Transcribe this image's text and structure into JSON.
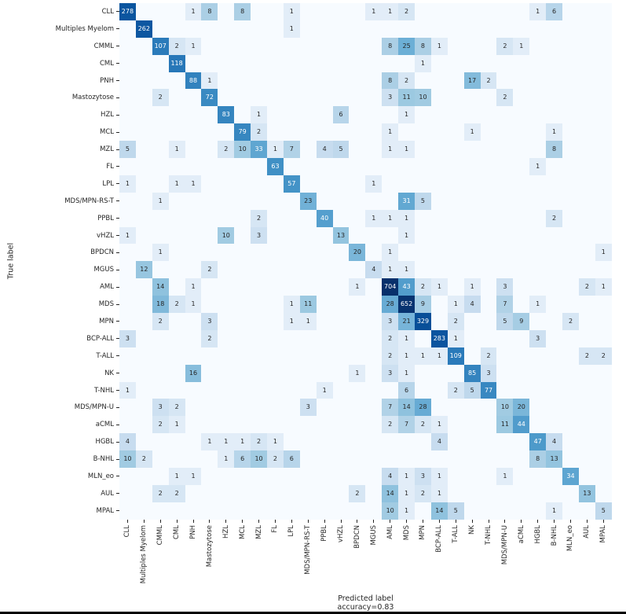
{
  "figure": {
    "background": "#ffffff",
    "tick_color": "#262626",
    "annotation_dark_text": "#262626",
    "annotation_light_text": "#ffffff"
  },
  "chart_data": {
    "type": "heatmap",
    "title": "",
    "xlabel": "Predicted label",
    "ylabel": "True label",
    "caption": "accuracy=0.83",
    "colormap": "Blues",
    "color_scale": "log",
    "vmax": 704,
    "grid": false,
    "labels": [
      "CLL",
      "Multiples Myelom",
      "CMML",
      "CML",
      "PNH",
      "Mastozytose",
      "HZL",
      "MCL",
      "MZL",
      "FL",
      "LPL",
      "MDS/MPN-RS-T",
      "PPBL",
      "vHZL",
      "BPDCN",
      "MGUS",
      "AML",
      "MDS",
      "MPN",
      "BCP-ALL",
      "T-ALL",
      "NK",
      "T-NHL",
      "MDS/MPN-U",
      "aCML",
      "HGBL",
      "B-NHL",
      "MLN_eo",
      "AUL",
      "MPAL"
    ],
    "matrix": [
      [
        278,
        0,
        0,
        0,
        1,
        8,
        0,
        8,
        0,
        0,
        1,
        0,
        0,
        0,
        0,
        1,
        1,
        2,
        0,
        0,
        0,
        0,
        0,
        0,
        0,
        1,
        6,
        0,
        0,
        0
      ],
      [
        0,
        262,
        0,
        0,
        0,
        0,
        0,
        0,
        0,
        0,
        1,
        0,
        0,
        0,
        0,
        0,
        0,
        0,
        0,
        0,
        0,
        0,
        0,
        0,
        0,
        0,
        0,
        0,
        0,
        0
      ],
      [
        0,
        0,
        107,
        2,
        1,
        0,
        0,
        0,
        0,
        0,
        0,
        0,
        0,
        0,
        0,
        0,
        8,
        25,
        8,
        1,
        0,
        0,
        0,
        2,
        1,
        0,
        0,
        0,
        0,
        0
      ],
      [
        0,
        0,
        0,
        118,
        0,
        0,
        0,
        0,
        0,
        0,
        0,
        0,
        0,
        0,
        0,
        0,
        0,
        0,
        1,
        0,
        0,
        0,
        0,
        0,
        0,
        0,
        0,
        0,
        0,
        0
      ],
      [
        0,
        0,
        0,
        0,
        88,
        1,
        0,
        0,
        0,
        0,
        0,
        0,
        0,
        0,
        0,
        0,
        8,
        2,
        0,
        0,
        0,
        17,
        2,
        0,
        0,
        0,
        0,
        0,
        0,
        0
      ],
      [
        0,
        0,
        2,
        0,
        0,
        72,
        0,
        0,
        0,
        0,
        0,
        0,
        0,
        0,
        0,
        0,
        3,
        11,
        10,
        0,
        0,
        0,
        0,
        2,
        0,
        0,
        0,
        0,
        0,
        0
      ],
      [
        0,
        0,
        0,
        0,
        0,
        0,
        83,
        0,
        1,
        0,
        0,
        0,
        0,
        6,
        0,
        0,
        0,
        1,
        0,
        0,
        0,
        0,
        0,
        0,
        0,
        0,
        0,
        0,
        0,
        0
      ],
      [
        0,
        0,
        0,
        0,
        0,
        0,
        0,
        79,
        2,
        0,
        0,
        0,
        0,
        0,
        0,
        0,
        1,
        0,
        0,
        0,
        0,
        1,
        0,
        0,
        0,
        0,
        1,
        0,
        0,
        0
      ],
      [
        5,
        0,
        0,
        1,
        0,
        0,
        2,
        10,
        33,
        1,
        7,
        0,
        4,
        5,
        0,
        0,
        1,
        1,
        0,
        0,
        0,
        0,
        0,
        0,
        0,
        0,
        8,
        0,
        0,
        0
      ],
      [
        0,
        0,
        0,
        0,
        0,
        0,
        0,
        0,
        0,
        63,
        0,
        0,
        0,
        0,
        0,
        0,
        0,
        0,
        0,
        0,
        0,
        0,
        0,
        0,
        0,
        1,
        0,
        0,
        0,
        0
      ],
      [
        1,
        0,
        0,
        1,
        1,
        0,
        0,
        0,
        0,
        0,
        57,
        0,
        0,
        0,
        0,
        1,
        0,
        0,
        0,
        0,
        0,
        0,
        0,
        0,
        0,
        0,
        0,
        0,
        0,
        0
      ],
      [
        0,
        0,
        1,
        0,
        0,
        0,
        0,
        0,
        0,
        0,
        0,
        23,
        0,
        0,
        0,
        0,
        0,
        31,
        5,
        0,
        0,
        0,
        0,
        0,
        0,
        0,
        0,
        0,
        0,
        0
      ],
      [
        0,
        0,
        0,
        0,
        0,
        0,
        0,
        0,
        2,
        0,
        0,
        0,
        40,
        0,
        0,
        1,
        1,
        1,
        0,
        0,
        0,
        0,
        0,
        0,
        0,
        0,
        2,
        0,
        0,
        0
      ],
      [
        1,
        0,
        0,
        0,
        0,
        0,
        10,
        0,
        3,
        0,
        0,
        0,
        0,
        13,
        0,
        0,
        0,
        1,
        0,
        0,
        0,
        0,
        0,
        0,
        0,
        0,
        0,
        0,
        0,
        0
      ],
      [
        0,
        0,
        1,
        0,
        0,
        0,
        0,
        0,
        0,
        0,
        0,
        0,
        0,
        0,
        20,
        0,
        1,
        0,
        0,
        0,
        0,
        0,
        0,
        0,
        0,
        0,
        0,
        0,
        0,
        1
      ],
      [
        0,
        12,
        0,
        0,
        0,
        2,
        0,
        0,
        0,
        0,
        0,
        0,
        0,
        0,
        0,
        4,
        1,
        1,
        0,
        0,
        0,
        0,
        0,
        0,
        0,
        0,
        0,
        0,
        0,
        0
      ],
      [
        0,
        0,
        14,
        0,
        1,
        0,
        0,
        0,
        0,
        0,
        0,
        0,
        0,
        0,
        1,
        0,
        704,
        43,
        2,
        1,
        0,
        1,
        0,
        3,
        0,
        0,
        0,
        0,
        2,
        1
      ],
      [
        0,
        0,
        18,
        2,
        1,
        0,
        0,
        0,
        0,
        0,
        1,
        11,
        0,
        0,
        0,
        0,
        28,
        652,
        9,
        0,
        1,
        4,
        0,
        7,
        0,
        1,
        0,
        0,
        0,
        0
      ],
      [
        0,
        0,
        2,
        0,
        0,
        3,
        0,
        0,
        0,
        0,
        1,
        1,
        0,
        0,
        0,
        0,
        3,
        21,
        329,
        0,
        2,
        0,
        0,
        5,
        9,
        0,
        0,
        2,
        0,
        0
      ],
      [
        3,
        0,
        0,
        0,
        0,
        2,
        0,
        0,
        0,
        0,
        0,
        0,
        0,
        0,
        0,
        0,
        2,
        1,
        0,
        283,
        1,
        0,
        0,
        0,
        0,
        3,
        0,
        0,
        0,
        0
      ],
      [
        0,
        0,
        0,
        0,
        0,
        0,
        0,
        0,
        0,
        0,
        0,
        0,
        0,
        0,
        0,
        0,
        2,
        1,
        1,
        1,
        109,
        0,
        2,
        0,
        0,
        0,
        0,
        0,
        2,
        2
      ],
      [
        0,
        0,
        0,
        0,
        16,
        0,
        0,
        0,
        0,
        0,
        0,
        0,
        0,
        0,
        1,
        0,
        3,
        1,
        0,
        0,
        0,
        85,
        3,
        0,
        0,
        0,
        0,
        0,
        0,
        0
      ],
      [
        1,
        0,
        0,
        0,
        0,
        0,
        0,
        0,
        0,
        0,
        0,
        0,
        1,
        0,
        0,
        0,
        0,
        6,
        0,
        0,
        2,
        5,
        77,
        0,
        0,
        0,
        0,
        0,
        0,
        0
      ],
      [
        0,
        0,
        3,
        2,
        0,
        0,
        0,
        0,
        0,
        0,
        0,
        3,
        0,
        0,
        0,
        0,
        7,
        14,
        28,
        0,
        0,
        0,
        0,
        10,
        20,
        0,
        0,
        0,
        0,
        0
      ],
      [
        0,
        0,
        2,
        1,
        0,
        0,
        0,
        0,
        0,
        0,
        0,
        0,
        0,
        0,
        0,
        0,
        2,
        7,
        2,
        1,
        0,
        0,
        0,
        11,
        44,
        0,
        0,
        0,
        0,
        0
      ],
      [
        4,
        0,
        0,
        0,
        0,
        1,
        1,
        1,
        2,
        1,
        0,
        0,
        0,
        0,
        0,
        0,
        0,
        0,
        0,
        4,
        0,
        0,
        0,
        0,
        0,
        47,
        4,
        0,
        0,
        0
      ],
      [
        10,
        2,
        0,
        0,
        0,
        0,
        1,
        6,
        10,
        2,
        6,
        0,
        0,
        0,
        0,
        0,
        0,
        0,
        0,
        0,
        0,
        0,
        0,
        0,
        0,
        8,
        13,
        0,
        0,
        0
      ],
      [
        0,
        0,
        0,
        1,
        1,
        0,
        0,
        0,
        0,
        0,
        0,
        0,
        0,
        0,
        0,
        0,
        4,
        1,
        3,
        1,
        0,
        0,
        0,
        1,
        0,
        0,
        0,
        34,
        0,
        0
      ],
      [
        0,
        0,
        2,
        2,
        0,
        0,
        0,
        0,
        0,
        0,
        0,
        0,
        0,
        0,
        2,
        0,
        14,
        1,
        2,
        1,
        0,
        0,
        0,
        0,
        0,
        0,
        0,
        0,
        13,
        0
      ],
      [
        0,
        0,
        0,
        0,
        0,
        0,
        0,
        0,
        0,
        0,
        0,
        0,
        0,
        0,
        0,
        0,
        10,
        1,
        0,
        14,
        5,
        0,
        0,
        0,
        0,
        0,
        1,
        0,
        0,
        5
      ]
    ]
  }
}
